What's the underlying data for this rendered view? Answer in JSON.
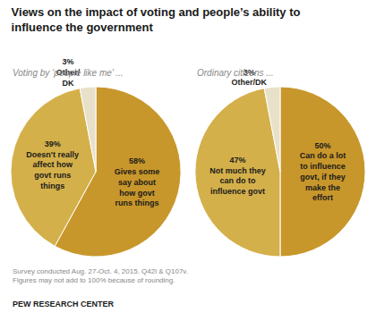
{
  "chart_data": [
    {
      "type": "pie",
      "title": "Views on the impact of voting and people’s ability to\ninfluence the government",
      "subtitle": "Voting by ‘people like me’ ...",
      "categories": [
        "Gives some\nsay about\nhow govt\nruns things",
        "Doesn't really\naffect how\ngovt runs\nthings",
        "Other/\nDK"
      ],
      "values": [
        58,
        39,
        3
      ],
      "value_labels": [
        "58%",
        "39%",
        "3%"
      ],
      "colors": [
        "#C8972B",
        "#D4B04A",
        "#E8E0C8"
      ],
      "data_labels": true,
      "annotations": [
        "Survey conducted Aug. 27-Oct. 4, 2015. Q42l & Q107v.\nFigures may not add to 100% because of rounding.",
        "PEW RESEARCH CENTER"
      ]
    },
    {
      "type": "pie",
      "subtitle": "Ordinary citizens ...",
      "categories": [
        "Can do a lot\nto influence\ngovt, if they\nmake the\neffort",
        "Not much they\ncan do to\ninfluence govt",
        "Other/DK"
      ],
      "values": [
        50,
        47,
        3
      ],
      "value_labels": [
        "50%",
        "47%",
        "3%"
      ],
      "colors": [
        "#C8972B",
        "#D4B04A",
        "#E8E0C8"
      ],
      "data_labels": true
    }
  ]
}
